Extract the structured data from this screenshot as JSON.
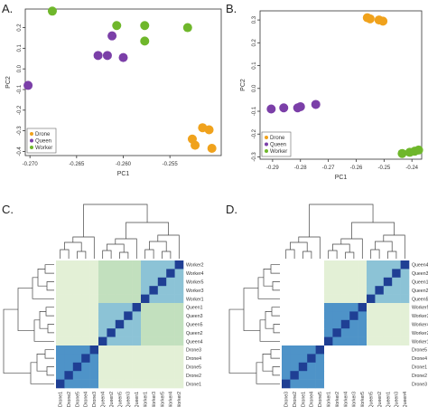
{
  "panels": [
    {
      "letter": "A."
    },
    {
      "letter": "B."
    },
    {
      "letter": "C."
    },
    {
      "letter": "D."
    }
  ],
  "colors": {
    "drone": "#f0a21c",
    "queen": "#7b3fa8",
    "worker": "#6fb72b"
  },
  "chart_data": [
    {
      "type": "scatter",
      "panel": "A.",
      "xlabel": "PC1",
      "ylabel": "PC2",
      "xlim": [
        -0.2705,
        -0.2495
      ],
      "ylim": [
        -0.42,
        0.29
      ],
      "xticks": [
        -0.27,
        -0.265,
        -0.26,
        -0.255
      ],
      "xtick_labels": [
        "-0.270",
        "-0.265",
        "-0.260",
        "-0.255"
      ],
      "yticks": [
        -0.4,
        -0.3,
        -0.2,
        -0.1,
        0.0,
        0.1,
        0.2
      ],
      "ytick_labels": [
        "-0.4",
        "-0.3",
        "-0.2",
        "-0.1",
        "0.0",
        "0.1",
        "0.2"
      ],
      "legend": {
        "position": "bottom-left",
        "entries": [
          "Drone",
          "Queen",
          "Worker"
        ]
      },
      "series": [
        {
          "name": "Drone",
          "points": [
            [
              -0.2526,
              -0.34
            ],
            [
              -0.2523,
              -0.37
            ],
            [
              -0.2515,
              -0.285
            ],
            [
              -0.2508,
              -0.295
            ],
            [
              -0.2505,
              -0.385
            ]
          ]
        },
        {
          "name": "Queen",
          "points": [
            [
              -0.2702,
              -0.08
            ],
            [
              -0.2627,
              0.065
            ],
            [
              -0.2617,
              0.065
            ],
            [
              -0.2612,
              0.16
            ],
            [
              -0.26,
              0.055
            ]
          ]
        },
        {
          "name": "Worker",
          "points": [
            [
              -0.2676,
              0.28
            ],
            [
              -0.2607,
              0.21
            ],
            [
              -0.2577,
              0.21
            ],
            [
              -0.2577,
              0.135
            ],
            [
              -0.2531,
              0.2
            ]
          ]
        }
      ]
    },
    {
      "type": "scatter",
      "panel": "B.",
      "xlabel": "PC1",
      "ylabel": "PC2",
      "xlim": [
        -0.2945,
        -0.2365
      ],
      "ylim": [
        -0.31,
        0.34
      ],
      "xticks": [
        -0.29,
        -0.28,
        -0.27,
        -0.26,
        -0.25,
        -0.24
      ],
      "xtick_labels": [
        "-0.29",
        "-0.28",
        "-0.27",
        "-0.26",
        "-0.25",
        "-0.24"
      ],
      "yticks": [
        -0.3,
        -0.2,
        -0.1,
        0.0,
        0.1,
        0.2,
        0.3
      ],
      "ytick_labels": [
        "-0.3",
        "-0.2",
        "-0.1",
        "0.0",
        "0.1",
        "0.2",
        "0.3"
      ],
      "legend": {
        "position": "bottom-left",
        "entries": [
          "Drone",
          "Queen",
          "Worker"
        ]
      },
      "series": [
        {
          "name": "Drone",
          "points": [
            [
              -0.256,
              0.31
            ],
            [
              -0.255,
              0.305
            ],
            [
              -0.2518,
              0.3
            ],
            [
              -0.2504,
              0.295
            ]
          ]
        },
        {
          "name": "Queen",
          "points": [
            [
              -0.2905,
              -0.09
            ],
            [
              -0.286,
              -0.085
            ],
            [
              -0.281,
              -0.085
            ],
            [
              -0.28,
              -0.08
            ],
            [
              -0.2745,
              -0.07
            ]
          ]
        },
        {
          "name": "Worker",
          "points": [
            [
              -0.2435,
              -0.285
            ],
            [
              -0.2408,
              -0.28
            ],
            [
              -0.239,
              -0.275
            ],
            [
              -0.2376,
              -0.27
            ]
          ]
        }
      ]
    },
    {
      "type": "heatmap",
      "panel": "C.",
      "rows": [
        "Worker2",
        "Worker4",
        "Worker5",
        "Worker3",
        "Worker1",
        "Queen1",
        "Queen3",
        "Queen5",
        "Queen2",
        "Queen4",
        "Drone3",
        "Drone4",
        "Drone5",
        "Drone2",
        "Drone1"
      ],
      "columns": [
        "Drone1",
        "Drone2",
        "Drone5",
        "Drone4",
        "Drone3",
        "Queen4",
        "Queen2",
        "Queen5",
        "Queen3",
        "Queen1",
        "Worker1",
        "Worker3",
        "Worker5",
        "Worker4",
        "Worker2"
      ],
      "color_scale": [
        "#ffffff",
        "#e3f0d6",
        "#c2e0be",
        "#8cc3d6",
        "#4e93c8",
        "#1f3f94"
      ]
    },
    {
      "type": "heatmap",
      "panel": "D.",
      "rows": [
        "Queen4",
        "Queen3",
        "Queen1",
        "Queen2",
        "Queen5",
        "Worker5",
        "Worker3",
        "Worker4",
        "Worker2",
        "Worker1",
        "Drone5",
        "Drone4",
        "Drone1",
        "Drone2",
        "Drone3"
      ],
      "columns": [
        "Drone3",
        "Drone2",
        "Drone1",
        "Drone4",
        "Drone5",
        "Worker1",
        "Worker2",
        "Worker4",
        "Worker3",
        "Worker5",
        "Queen5",
        "Queen2",
        "Queen1",
        "Queen3",
        "Queen4"
      ],
      "color_scale": [
        "#ffffff",
        "#e3f0d6",
        "#c2e0be",
        "#8cc3d6",
        "#4e93c8",
        "#1f3f94"
      ]
    }
  ]
}
